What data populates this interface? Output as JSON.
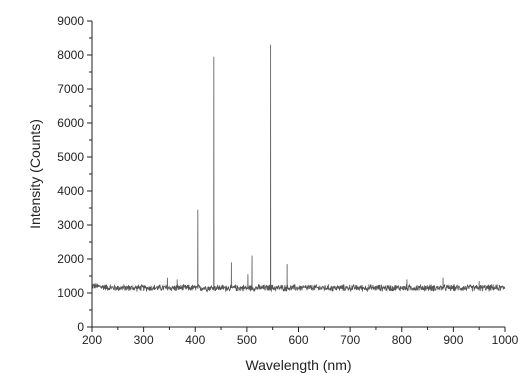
{
  "chart_data": {
    "type": "line",
    "title": "",
    "xlabel": "Wavelength (nm)",
    "ylabel": "Intensity (Counts)",
    "xlim": [
      200,
      1000
    ],
    "ylim": [
      0,
      9000
    ],
    "xticks": [
      200,
      300,
      400,
      500,
      600,
      700,
      800,
      900,
      1000
    ],
    "yticks": [
      0,
      1000,
      2000,
      3000,
      4000,
      5000,
      6000,
      7000,
      8000,
      9000
    ],
    "grid": false,
    "legend": "none",
    "series": [
      {
        "color": "#555555",
        "baseline": 1150,
        "noise_amplitude": 120,
        "x_start": 200,
        "x_end": 1000,
        "peaks": [
          {
            "x": 346,
            "y": 1450
          },
          {
            "x": 365,
            "y": 1400
          },
          {
            "x": 405,
            "y": 3450
          },
          {
            "x": 436,
            "y": 7950
          },
          {
            "x": 470,
            "y": 1900
          },
          {
            "x": 502,
            "y": 1550
          },
          {
            "x": 510,
            "y": 2100
          },
          {
            "x": 546,
            "y": 8300
          },
          {
            "x": 578,
            "y": 1850
          },
          {
            "x": 810,
            "y": 1400
          },
          {
            "x": 880,
            "y": 1450
          },
          {
            "x": 950,
            "y": 1350
          }
        ]
      }
    ]
  }
}
